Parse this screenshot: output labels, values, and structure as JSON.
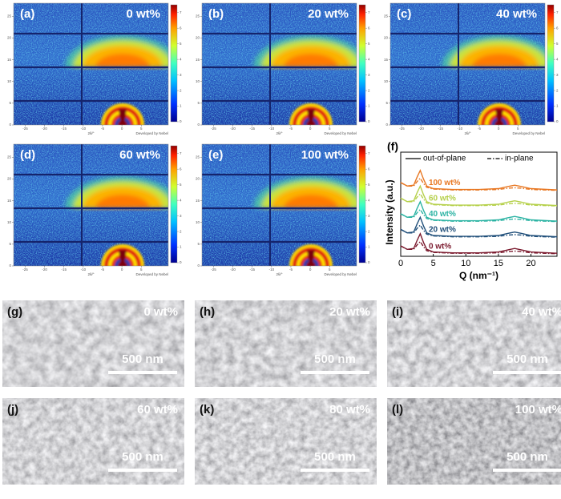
{
  "giwaxs": {
    "x_label": "2θ/°",
    "footer": "Developed by Nebel",
    "xlim": [
      -28,
      12
    ],
    "ylim": [
      0,
      28
    ],
    "xticks": [
      -25,
      -20,
      -15,
      -10,
      -5,
      0,
      5
    ],
    "yticks": [
      0,
      5,
      10,
      15,
      20,
      25
    ],
    "colorbar_lim": [
      0,
      7.5
    ],
    "colorbar_ticks": [
      0,
      1,
      2,
      3,
      4,
      5,
      6,
      7
    ],
    "panels": [
      {
        "label": "(a)",
        "composition": "0 wt%"
      },
      {
        "label": "(b)",
        "composition": "20 wt%"
      },
      {
        "label": "(c)",
        "composition": "40 wt%"
      },
      {
        "label": "(d)",
        "composition": "60 wt%"
      },
      {
        "label": "(e)",
        "composition": "100 wt%"
      }
    ]
  },
  "chart_data": {
    "type": "line",
    "panel_label": "(f)",
    "x_label": "Q (nm⁻¹)",
    "y_label": "Intensity (a.u.)",
    "xlim": [
      0,
      24
    ],
    "xticks": [
      0,
      5,
      10,
      15,
      20
    ],
    "ylim": [
      0,
      12
    ],
    "legend": [
      "out-of-plane",
      "in-plane"
    ],
    "x": [
      0,
      1,
      2,
      2.5,
      3,
      3.5,
      4,
      5,
      8,
      12,
      15,
      16.5,
      17.5,
      18.5,
      20,
      24
    ],
    "series": [
      {
        "name": "0 wt%",
        "color": "#7b1a2e",
        "out_of_plane": [
          1.2,
          0.8,
          0.9,
          1.8,
          2.6,
          1.6,
          0.8,
          0.5,
          0.4,
          0.4,
          0.5,
          0.75,
          0.9,
          0.75,
          0.5,
          0.35
        ],
        "in_plane": [
          1.2,
          0.8,
          0.8,
          1.3,
          1.7,
          1.1,
          0.65,
          0.45,
          0.35,
          0.35,
          0.4,
          0.55,
          0.6,
          0.55,
          0.4,
          0.3
        ]
      },
      {
        "name": "20 wt%",
        "color": "#1f4e79",
        "out_of_plane": [
          3.1,
          2.7,
          2.8,
          3.7,
          4.5,
          3.5,
          2.7,
          2.4,
          2.3,
          2.3,
          2.4,
          2.65,
          2.8,
          2.65,
          2.4,
          2.25
        ],
        "in_plane": [
          3.1,
          2.7,
          2.7,
          3.2,
          3.6,
          3.0,
          2.55,
          2.35,
          2.25,
          2.25,
          2.3,
          2.45,
          2.5,
          2.45,
          2.3,
          2.2
        ]
      },
      {
        "name": "40 wt%",
        "color": "#2bb3a3",
        "out_of_plane": [
          4.9,
          4.5,
          4.6,
          5.5,
          6.3,
          5.3,
          4.5,
          4.2,
          4.1,
          4.1,
          4.2,
          4.45,
          4.6,
          4.45,
          4.2,
          4.05
        ],
        "in_plane": [
          4.9,
          4.5,
          4.5,
          5.0,
          5.4,
          4.8,
          4.35,
          4.15,
          4.05,
          4.05,
          4.1,
          4.25,
          4.3,
          4.25,
          4.1,
          4.0
        ]
      },
      {
        "name": "60 wt%",
        "color": "#b5d04a",
        "out_of_plane": [
          6.7,
          6.3,
          6.4,
          7.3,
          8.1,
          7.1,
          6.3,
          6.0,
          5.9,
          5.9,
          6.0,
          6.25,
          6.4,
          6.25,
          6.0,
          5.85
        ],
        "in_plane": [
          6.7,
          6.3,
          6.3,
          6.8,
          7.2,
          6.6,
          6.15,
          5.95,
          5.85,
          5.85,
          5.9,
          6.05,
          6.1,
          6.05,
          5.9,
          5.8
        ]
      },
      {
        "name": "100 wt%",
        "color": "#e87722",
        "out_of_plane": [
          8.5,
          8.1,
          8.2,
          9.1,
          9.9,
          8.9,
          8.1,
          7.8,
          7.7,
          7.7,
          7.8,
          8.05,
          8.2,
          8.05,
          7.8,
          7.65
        ],
        "in_plane": [
          8.5,
          8.1,
          8.1,
          8.6,
          9.0,
          8.4,
          7.95,
          7.75,
          7.65,
          7.65,
          7.7,
          7.85,
          7.9,
          7.85,
          7.7,
          7.6
        ]
      }
    ]
  },
  "tem": {
    "scale_bar": "500 nm",
    "panels": [
      {
        "label": "(g)",
        "composition": "0 wt%"
      },
      {
        "label": "(h)",
        "composition": "20 wt%"
      },
      {
        "label": "(i)",
        "composition": "40 wt%"
      },
      {
        "label": "(j)",
        "composition": "60 wt%"
      },
      {
        "label": "(k)",
        "composition": "80 wt%"
      },
      {
        "label": "(l)",
        "composition": "100 wt%"
      }
    ]
  }
}
